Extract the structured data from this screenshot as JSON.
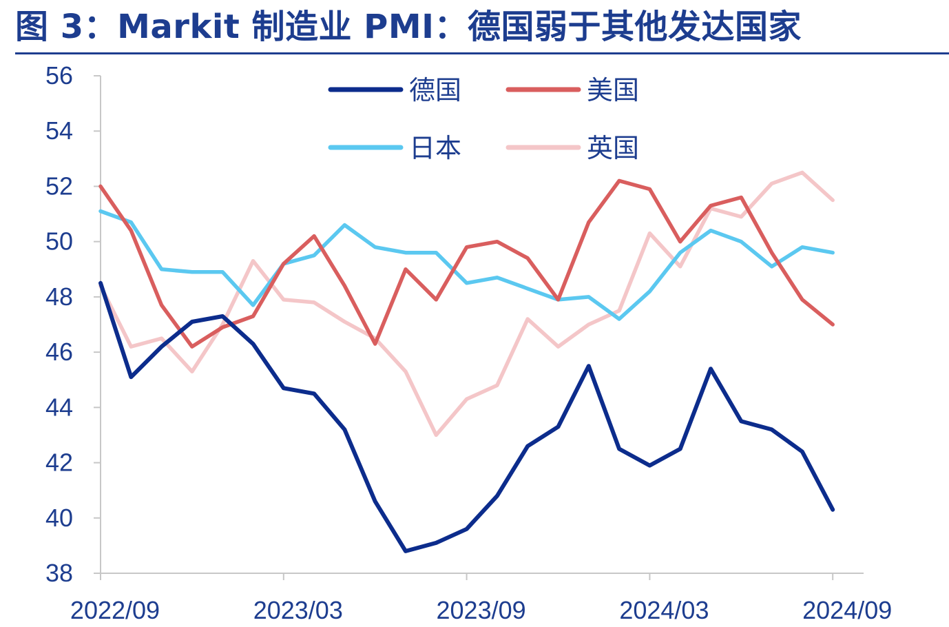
{
  "title": "图 3：Markit 制造业 PMI：德国弱于其他发达国家",
  "chart_data": {
    "type": "line",
    "title": "图 3：Markit 制造业 PMI：德国弱于其他发达国家",
    "xlabel": "",
    "ylabel": "",
    "x": [
      "2022/09",
      "2022/10",
      "2022/11",
      "2022/12",
      "2023/01",
      "2023/02",
      "2023/03",
      "2023/04",
      "2023/05",
      "2023/06",
      "2023/07",
      "2023/08",
      "2023/09",
      "2023/10",
      "2023/11",
      "2023/12",
      "2024/01",
      "2024/02",
      "2024/03",
      "2024/04",
      "2024/05",
      "2024/06",
      "2024/07",
      "2024/08",
      "2024/09",
      "2024/10"
    ],
    "x_tick_labels": [
      "2022/09",
      "2023/03",
      "2023/09",
      "2024/03",
      "2024/09"
    ],
    "ylim": [
      38,
      56
    ],
    "y_ticks": [
      38,
      40,
      42,
      44,
      46,
      48,
      50,
      52,
      54,
      56
    ],
    "grid": false,
    "legend_position": "top-center",
    "series": [
      {
        "name": "德国",
        "color": "#0c2c8c",
        "values": [
          48.5,
          45.1,
          46.2,
          47.1,
          47.3,
          46.3,
          44.7,
          44.5,
          43.2,
          40.6,
          38.8,
          39.1,
          39.6,
          40.8,
          42.6,
          43.3,
          45.5,
          42.5,
          41.9,
          42.5,
          45.4,
          43.5,
          43.2,
          42.4,
          40.3,
          null
        ]
      },
      {
        "name": "美国",
        "color": "#d95e5e",
        "values": [
          52.0,
          50.4,
          47.7,
          46.2,
          46.9,
          47.3,
          49.2,
          50.2,
          48.4,
          46.3,
          49.0,
          47.9,
          49.8,
          50.0,
          49.4,
          47.9,
          50.7,
          52.2,
          51.9,
          50.0,
          51.3,
          51.6,
          49.6,
          47.9,
          47.0,
          null
        ]
      },
      {
        "name": "日本",
        "color": "#5bc8f0",
        "values": [
          51.1,
          50.7,
          49.0,
          48.9,
          48.9,
          47.7,
          49.2,
          49.5,
          50.6,
          49.8,
          49.6,
          49.6,
          48.5,
          48.7,
          48.3,
          47.9,
          48.0,
          47.2,
          48.2,
          49.6,
          50.4,
          50.0,
          49.1,
          49.8,
          49.6,
          null
        ]
      },
      {
        "name": "英国",
        "color": "#f4c6c8",
        "values": [
          48.4,
          46.2,
          46.5,
          45.3,
          47.0,
          49.3,
          47.9,
          47.8,
          47.1,
          46.5,
          45.3,
          43.0,
          44.3,
          44.8,
          47.2,
          46.2,
          47.0,
          47.5,
          50.3,
          49.1,
          51.2,
          50.9,
          52.1,
          52.5,
          51.5,
          null
        ]
      }
    ]
  }
}
